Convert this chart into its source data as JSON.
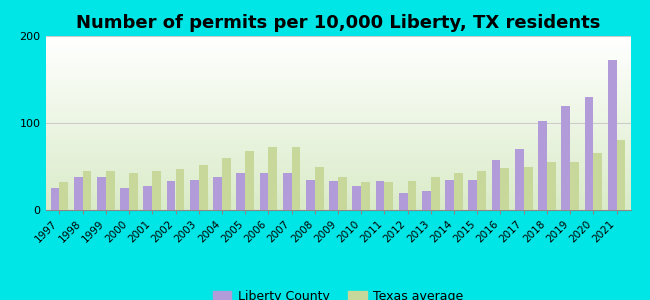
{
  "title": "Number of permits per 10,000 Liberty, TX residents",
  "years": [
    1997,
    1998,
    1999,
    2000,
    2001,
    2002,
    2003,
    2004,
    2005,
    2006,
    2007,
    2008,
    2009,
    2010,
    2011,
    2012,
    2013,
    2014,
    2015,
    2016,
    2017,
    2018,
    2019,
    2020,
    2021
  ],
  "liberty_county": [
    25,
    38,
    38,
    25,
    28,
    33,
    35,
    38,
    42,
    42,
    42,
    35,
    33,
    28,
    33,
    20,
    22,
    35,
    35,
    58,
    70,
    102,
    120,
    130,
    172
  ],
  "texas_average": [
    32,
    45,
    45,
    42,
    45,
    47,
    52,
    60,
    68,
    72,
    72,
    50,
    38,
    32,
    32,
    33,
    38,
    42,
    45,
    48,
    50,
    55,
    55,
    65,
    80
  ],
  "liberty_color": "#b19cd9",
  "texas_color": "#c8d89a",
  "outer_bg": "#00e5e5",
  "ylim": [
    0,
    200
  ],
  "yticks": [
    0,
    100,
    200
  ],
  "bar_width": 0.38,
  "title_fontsize": 13,
  "legend_labels": [
    "Liberty County",
    "Texas average"
  ]
}
